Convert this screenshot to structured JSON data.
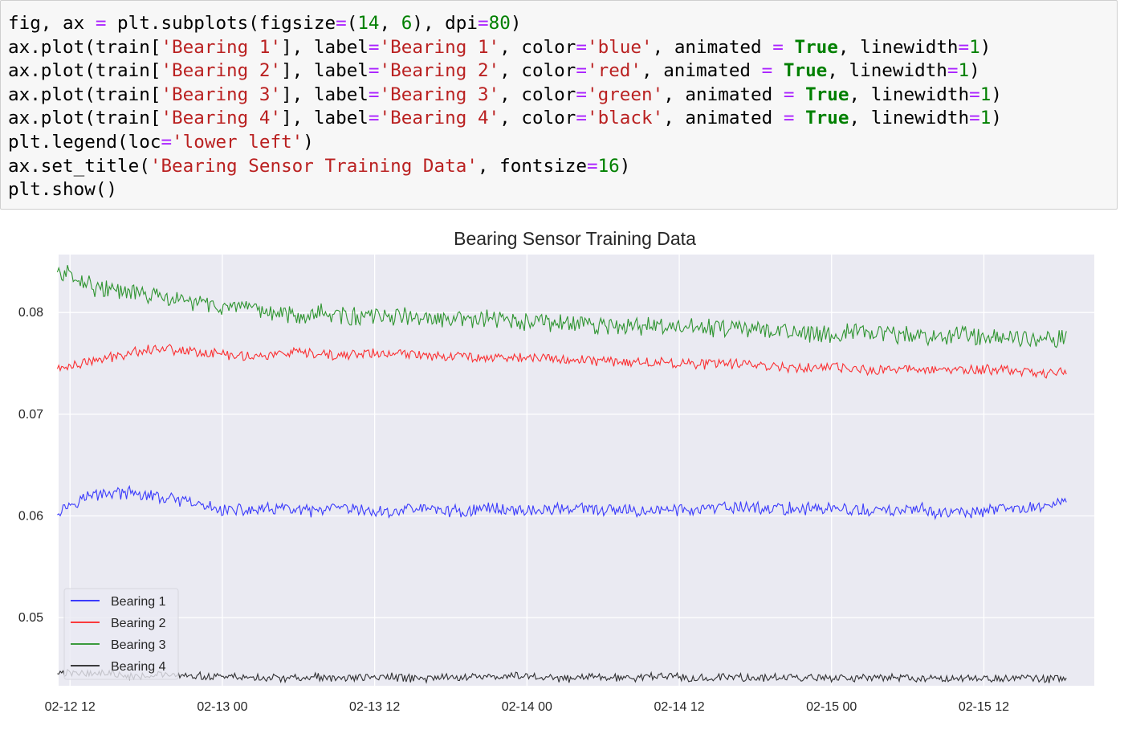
{
  "code_cell": {
    "lines": [
      [
        [
          "txt",
          "fig, ax "
        ],
        [
          "op",
          "="
        ],
        [
          "txt",
          " plt.subplots(figsize"
        ],
        [
          "op",
          "="
        ],
        [
          "txt",
          "("
        ],
        [
          "num",
          "14"
        ],
        [
          "txt",
          ", "
        ],
        [
          "num",
          "6"
        ],
        [
          "txt",
          "), dpi"
        ],
        [
          "op",
          "="
        ],
        [
          "num",
          "80"
        ],
        [
          "txt",
          ")"
        ]
      ],
      [
        [
          "txt",
          "ax.plot(train["
        ],
        [
          "str",
          "'Bearing 1'"
        ],
        [
          "txt",
          "], label"
        ],
        [
          "op",
          "="
        ],
        [
          "str",
          "'Bearing 1'"
        ],
        [
          "txt",
          ", color"
        ],
        [
          "op",
          "="
        ],
        [
          "str",
          "'blue'"
        ],
        [
          "txt",
          ", animated "
        ],
        [
          "op",
          "="
        ],
        [
          "txt",
          " "
        ],
        [
          "kw",
          "True"
        ],
        [
          "txt",
          ", linewidth"
        ],
        [
          "op",
          "="
        ],
        [
          "num",
          "1"
        ],
        [
          "txt",
          ")"
        ]
      ],
      [
        [
          "txt",
          "ax.plot(train["
        ],
        [
          "str",
          "'Bearing 2'"
        ],
        [
          "txt",
          "], label"
        ],
        [
          "op",
          "="
        ],
        [
          "str",
          "'Bearing 2'"
        ],
        [
          "txt",
          ", color"
        ],
        [
          "op",
          "="
        ],
        [
          "str",
          "'red'"
        ],
        [
          "txt",
          ", animated "
        ],
        [
          "op",
          "="
        ],
        [
          "txt",
          " "
        ],
        [
          "kw",
          "True"
        ],
        [
          "txt",
          ", linewidth"
        ],
        [
          "op",
          "="
        ],
        [
          "num",
          "1"
        ],
        [
          "txt",
          ")"
        ]
      ],
      [
        [
          "txt",
          "ax.plot(train["
        ],
        [
          "str",
          "'Bearing 3'"
        ],
        [
          "txt",
          "], label"
        ],
        [
          "op",
          "="
        ],
        [
          "str",
          "'Bearing 3'"
        ],
        [
          "txt",
          ", color"
        ],
        [
          "op",
          "="
        ],
        [
          "str",
          "'green'"
        ],
        [
          "txt",
          ", animated "
        ],
        [
          "op",
          "="
        ],
        [
          "txt",
          " "
        ],
        [
          "kw",
          "True"
        ],
        [
          "txt",
          ", linewidth"
        ],
        [
          "op",
          "="
        ],
        [
          "num",
          "1"
        ],
        [
          "txt",
          ")"
        ]
      ],
      [
        [
          "txt",
          "ax.plot(train["
        ],
        [
          "str",
          "'Bearing 4'"
        ],
        [
          "txt",
          "], label"
        ],
        [
          "op",
          "="
        ],
        [
          "str",
          "'Bearing 4'"
        ],
        [
          "txt",
          ", color"
        ],
        [
          "op",
          "="
        ],
        [
          "str",
          "'black'"
        ],
        [
          "txt",
          ", animated "
        ],
        [
          "op",
          "="
        ],
        [
          "txt",
          " "
        ],
        [
          "kw",
          "True"
        ],
        [
          "txt",
          ", linewidth"
        ],
        [
          "op",
          "="
        ],
        [
          "num",
          "1"
        ],
        [
          "txt",
          ")"
        ]
      ],
      [
        [
          "txt",
          "plt.legend(loc"
        ],
        [
          "op",
          "="
        ],
        [
          "str",
          "'lower left'"
        ],
        [
          "txt",
          ")"
        ]
      ],
      [
        [
          "txt",
          "ax.set_title("
        ],
        [
          "str",
          "'Bearing Sensor Training Data'"
        ],
        [
          "txt",
          ", fontsize"
        ],
        [
          "op",
          "="
        ],
        [
          "num",
          "16"
        ],
        [
          "txt",
          ")"
        ]
      ],
      [
        [
          "txt",
          "plt.show()"
        ]
      ]
    ]
  },
  "colors": {
    "string": "#ba2121",
    "number": "#008000",
    "operator": "#aa22ff",
    "keyword": "#008000",
    "plot_background": "#eaeaf2",
    "grid": "#ffffff"
  },
  "chart_data": {
    "type": "line",
    "title": "Bearing Sensor Training Data",
    "xlabel": "",
    "ylabel": "",
    "x_ticks": [
      "02-12 12",
      "02-13 00",
      "02-13 12",
      "02-14 00",
      "02-14 12",
      "02-15 00",
      "02-15 12"
    ],
    "y_ticks": [
      "0.05",
      "0.06",
      "0.07",
      "0.08"
    ],
    "x_range_hours": [
      -0.9,
      80.7
    ],
    "x_range_labels": [
      "02-12 11:06",
      "02-15 20:42"
    ],
    "ylim": [
      0.0433,
      0.0857
    ],
    "grid": true,
    "legend": "lower left",
    "series": [
      {
        "name": "Bearing 1",
        "color": "blue",
        "x_hours": [
          -1.0,
          1,
          3,
          5,
          7,
          9,
          11,
          13,
          15,
          17,
          19,
          21,
          23,
          25,
          27,
          29,
          31,
          33,
          35,
          37,
          39,
          41,
          43,
          45,
          47,
          49,
          51,
          53,
          55,
          57,
          59,
          61,
          63,
          65,
          67,
          69,
          71,
          73,
          75,
          77,
          78.5
        ],
        "values": [
          0.0605,
          0.0618,
          0.0623,
          0.0622,
          0.0618,
          0.0614,
          0.0608,
          0.0605,
          0.0606,
          0.0607,
          0.0604,
          0.0607,
          0.0605,
          0.0603,
          0.0608,
          0.0606,
          0.0604,
          0.0608,
          0.0606,
          0.0605,
          0.0608,
          0.0606,
          0.0605,
          0.0605,
          0.0606,
          0.0606,
          0.0607,
          0.0609,
          0.0607,
          0.0607,
          0.0608,
          0.0606,
          0.0605,
          0.0605,
          0.0606,
          0.0603,
          0.0603,
          0.0606,
          0.0607,
          0.061,
          0.0616
        ]
      },
      {
        "name": "Bearing 2",
        "color": "red",
        "x_hours": [
          -1.0,
          1,
          3,
          5,
          7,
          9,
          11,
          13,
          15,
          17,
          19,
          21,
          23,
          25,
          27,
          29,
          31,
          33,
          35,
          37,
          39,
          41,
          43,
          45,
          47,
          49,
          51,
          53,
          55,
          57,
          59,
          61,
          63,
          65,
          67,
          69,
          71,
          73,
          75,
          77,
          78.5
        ],
        "values": [
          0.0745,
          0.075,
          0.0755,
          0.0762,
          0.0765,
          0.0763,
          0.076,
          0.0758,
          0.0757,
          0.076,
          0.0759,
          0.0757,
          0.076,
          0.0759,
          0.0759,
          0.0758,
          0.0757,
          0.0756,
          0.0756,
          0.0755,
          0.0754,
          0.0753,
          0.0752,
          0.0751,
          0.0751,
          0.075,
          0.0749,
          0.075,
          0.0748,
          0.0746,
          0.0746,
          0.0745,
          0.0743,
          0.0744,
          0.0745,
          0.0744,
          0.0743,
          0.0744,
          0.0742,
          0.074,
          0.0743
        ]
      },
      {
        "name": "Bearing 3",
        "color": "green",
        "x_hours": [
          -1.0,
          0.5,
          2,
          4,
          6,
          8,
          10,
          12,
          14,
          16,
          18,
          20,
          22,
          24,
          26,
          28,
          30,
          32,
          34,
          36,
          38,
          40,
          42,
          44,
          46,
          48,
          50,
          52,
          54,
          56,
          58,
          60,
          62,
          64,
          66,
          68,
          70,
          72,
          74,
          76,
          78.5
        ],
        "values": [
          0.084,
          0.0835,
          0.0825,
          0.082,
          0.0818,
          0.0812,
          0.081,
          0.0806,
          0.0801,
          0.08,
          0.0798,
          0.08,
          0.0796,
          0.0795,
          0.0797,
          0.0793,
          0.0792,
          0.0794,
          0.0792,
          0.079,
          0.079,
          0.0788,
          0.0788,
          0.0785,
          0.0787,
          0.0785,
          0.0785,
          0.0785,
          0.0782,
          0.0783,
          0.078,
          0.078,
          0.0781,
          0.0778,
          0.0778,
          0.0777,
          0.0778,
          0.0776,
          0.0777,
          0.0775,
          0.0775
        ]
      },
      {
        "name": "Bearing 4",
        "color": "black",
        "x_hours": [
          -1.0,
          1,
          3,
          5,
          7,
          9,
          11,
          13,
          15,
          17,
          19,
          21,
          23,
          25,
          27,
          29,
          31,
          33,
          35,
          37,
          39,
          41,
          43,
          45,
          47,
          49,
          51,
          53,
          55,
          57,
          59,
          61,
          63,
          65,
          67,
          69,
          71,
          73,
          75,
          77,
          78.5
        ],
        "values": [
          0.0445,
          0.0446,
          0.0445,
          0.0443,
          0.0444,
          0.0442,
          0.0442,
          0.0442,
          0.0441,
          0.044,
          0.0442,
          0.044,
          0.0441,
          0.0442,
          0.044,
          0.0441,
          0.0442,
          0.0441,
          0.0443,
          0.0442,
          0.044,
          0.0442,
          0.0441,
          0.0441,
          0.0443,
          0.044,
          0.0442,
          0.0441,
          0.0441,
          0.044,
          0.0441,
          0.044,
          0.044,
          0.0441,
          0.044,
          0.044,
          0.0441,
          0.044,
          0.0441,
          0.044,
          0.0439
        ]
      }
    ]
  }
}
